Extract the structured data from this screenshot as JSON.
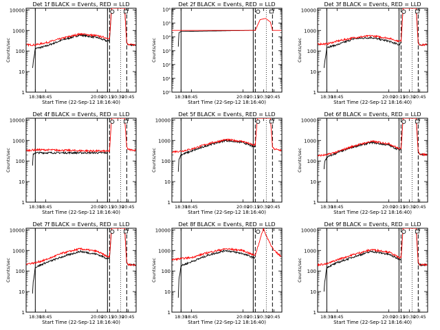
{
  "colors": {
    "events": "#000000",
    "lld": "#ff0000",
    "axes": "#000000",
    "background": "#ffffff"
  },
  "chart_data": [
    {
      "type": "line",
      "title": "Det 1f BLACK = Events, RED = LLD",
      "xlabel": "Start Time (22-Sep-12 18:16:40)",
      "ylabel": "Counts/sec",
      "xlim": [
        "18:16:40",
        "20:56:40"
      ],
      "ylim": [
        1,
        12000
      ],
      "log_y": true,
      "x_ticks": [
        "18:30",
        "18:45",
        "20:00",
        "20:15",
        "20:30",
        "20:45"
      ],
      "y_ticks": [
        "1",
        "10",
        "100",
        "1000",
        "10000"
      ],
      "solid_vlines": [
        "18:30",
        "20:15"
      ],
      "dashed_vlines": [
        "20:18",
        "20:43"
      ],
      "dotted_vlines": [
        "20:34"
      ],
      "markers": [
        {
          "label": "S",
          "time": "20:18"
        },
        {
          "label": "N",
          "time": "20:43"
        }
      ],
      "series": [
        {
          "name": "Events",
          "color": "#000000",
          "x": [
            "18:26",
            "18:27",
            "18:30",
            "18:45",
            "19:10",
            "19:35",
            "20:00",
            "20:15",
            "20:18",
            "20:21",
            "20:40",
            "20:43",
            "20:45",
            "20:56"
          ],
          "y": [
            15,
            28,
            130,
            170,
            350,
            600,
            450,
            300,
            320,
            12000,
            12000,
            260,
            200,
            200
          ]
        },
        {
          "name": "LLD",
          "color": "#ff0000",
          "x": [
            "18:16",
            "18:30",
            "18:45",
            "19:10",
            "19:35",
            "20:00",
            "20:15",
            "20:18",
            "20:21",
            "20:40",
            "20:43",
            "20:45",
            "20:56"
          ],
          "y": [
            200,
            200,
            250,
            420,
            680,
            550,
            420,
            420,
            12000,
            12000,
            260,
            200,
            200
          ]
        }
      ]
    },
    {
      "type": "line",
      "title": "Det 2f BLACK = Events, RED = LLD",
      "xlabel": "Start Time (22-Sep-12 18:16:40)",
      "ylabel": "Counts/sec",
      "xlim": [
        "18:16:40",
        "20:56:40"
      ],
      "ylim": [
        1,
        1200000
      ],
      "log_y": true,
      "x_ticks": [
        "18:30",
        "18:45",
        "20:00",
        "20:15",
        "20:30",
        "20:45"
      ],
      "y_ticks": [
        "10⁰",
        "10¹",
        "10²",
        "10³",
        "10⁴",
        "10⁵",
        "10⁶"
      ],
      "solid_vlines": [
        "18:30",
        "20:15"
      ],
      "dashed_vlines": [
        "20:18",
        "20:43"
      ],
      "dotted_vlines": [
        "20:34"
      ],
      "markers": [
        {
          "label": "S",
          "time": "20:18"
        },
        {
          "label": "N",
          "time": "20:43"
        }
      ],
      "series": [
        {
          "name": "Events",
          "color": "#000000",
          "x": [
            "18:26",
            "18:27",
            "18:30",
            "20:15",
            "20:18"
          ],
          "y": [
            2000,
            20000,
            25000,
            30000,
            30000
          ]
        },
        {
          "name": "LLD",
          "color": "#ff0000",
          "x": [
            "18:16",
            "18:30",
            "20:15",
            "20:18",
            "20:25",
            "20:33",
            "20:40",
            "20:43",
            "20:56"
          ],
          "y": [
            30000,
            30000,
            30000,
            30000,
            180000,
            220000,
            120000,
            30000,
            30000
          ]
        }
      ]
    },
    {
      "type": "line",
      "title": "Det 3f BLACK = Events, RED = LLD",
      "xlabel": "Start Time (22-Sep-12 18:16:40)",
      "ylabel": "Counts/sec",
      "xlim": [
        "18:16:40",
        "20:56:40"
      ],
      "ylim": [
        1,
        12000
      ],
      "log_y": true,
      "x_ticks": [
        "18:30",
        "18:45",
        "20:00",
        "20:15",
        "20:30",
        "20:45"
      ],
      "y_ticks": [
        "1",
        "10",
        "100",
        "1000",
        "10000"
      ],
      "solid_vlines": [
        "18:30",
        "20:15"
      ],
      "dashed_vlines": [
        "20:18",
        "20:43"
      ],
      "dotted_vlines": [
        "20:34"
      ],
      "markers": [
        {
          "label": "S",
          "time": "20:18"
        },
        {
          "label": "N",
          "time": "20:43"
        }
      ],
      "series": [
        {
          "name": "Events",
          "color": "#000000",
          "x": [
            "18:26",
            "18:27",
            "18:30",
            "18:45",
            "19:10",
            "19:35",
            "20:00",
            "20:15",
            "20:18",
            "20:21",
            "20:40",
            "20:43",
            "20:45",
            "20:56"
          ],
          "y": [
            15,
            28,
            150,
            200,
            400,
            450,
            300,
            200,
            250,
            12000,
            12000,
            260,
            200,
            200
          ]
        },
        {
          "name": "LLD",
          "color": "#ff0000",
          "x": [
            "18:16",
            "18:30",
            "18:45",
            "19:10",
            "19:35",
            "20:00",
            "20:15",
            "20:18",
            "20:21",
            "20:40",
            "20:43",
            "20:45",
            "20:56"
          ],
          "y": [
            220,
            220,
            300,
            450,
            550,
            420,
            300,
            300,
            12000,
            12000,
            260,
            200,
            200
          ]
        }
      ]
    },
    {
      "type": "line",
      "title": "Det 4f BLACK = Events, RED = LLD",
      "xlabel": "Start Time (22-Sep-12 18:16:40)",
      "ylabel": "Counts/sec",
      "xlim": [
        "18:16:40",
        "20:56:40"
      ],
      "ylim": [
        1,
        12000
      ],
      "log_y": true,
      "x_ticks": [
        "18:30",
        "18:45",
        "20:00",
        "20:15",
        "20:30",
        "20:45"
      ],
      "y_ticks": [
        "1",
        "10",
        "100",
        "1000",
        "10000"
      ],
      "solid_vlines": [
        "18:30",
        "20:15"
      ],
      "dashed_vlines": [
        "20:18",
        "20:43"
      ],
      "dotted_vlines": [
        "20:34"
      ],
      "markers": [
        {
          "label": "S",
          "time": "20:18"
        },
        {
          "label": "N",
          "time": "20:43"
        }
      ],
      "series": [
        {
          "name": "Events",
          "color": "#000000",
          "x": [
            "18:26",
            "18:27",
            "18:30",
            "20:15"
          ],
          "y": [
            60,
            220,
            250,
            250
          ]
        },
        {
          "name": "LLD",
          "color": "#ff0000",
          "x": [
            "18:16",
            "18:30",
            "18:45",
            "19:30",
            "20:15",
            "20:18",
            "20:21",
            "20:40",
            "20:43",
            "20:45",
            "20:56"
          ],
          "y": [
            320,
            350,
            350,
            320,
            300,
            300,
            12000,
            12000,
            500,
            360,
            330
          ]
        }
      ]
    },
    {
      "type": "line",
      "title": "Det 5f BLACK = Events, RED = LLD",
      "xlabel": "Start Time (22-Sep-12 18:16:40)",
      "ylabel": "Counts/sec",
      "xlim": [
        "18:16:40",
        "20:56:40"
      ],
      "ylim": [
        1,
        12000
      ],
      "log_y": true,
      "x_ticks": [
        "18:30",
        "18:45",
        "20:00",
        "20:15",
        "20:30",
        "20:45"
      ],
      "y_ticks": [
        "1",
        "10",
        "100",
        "1000",
        "10000"
      ],
      "solid_vlines": [
        "18:30",
        "20:15"
      ],
      "dashed_vlines": [
        "20:18",
        "20:43"
      ],
      "dotted_vlines": [
        "20:34"
      ],
      "markers": [
        {
          "label": "S",
          "time": "20:18"
        },
        {
          "label": "N",
          "time": "20:43"
        }
      ],
      "series": [
        {
          "name": "Events",
          "color": "#000000",
          "x": [
            "18:26",
            "18:27",
            "18:30",
            "18:45",
            "19:10",
            "19:35",
            "20:00",
            "20:15",
            "20:18"
          ],
          "y": [
            30,
            120,
            200,
            300,
            600,
            1000,
            800,
            500,
            500
          ]
        },
        {
          "name": "LLD",
          "color": "#ff0000",
          "x": [
            "18:16",
            "18:30",
            "18:45",
            "19:10",
            "19:35",
            "20:00",
            "20:15",
            "20:18",
            "20:21",
            "20:40",
            "20:43",
            "20:45",
            "20:56"
          ],
          "y": [
            280,
            300,
            380,
            700,
            1100,
            900,
            600,
            600,
            12000,
            12000,
            500,
            380,
            330
          ]
        }
      ]
    },
    {
      "type": "line",
      "title": "Det 6f BLACK = Events, RED = LLD",
      "xlabel": "Start Time (22-Sep-12 18:16:40)",
      "ylabel": "Counts/sec",
      "xlim": [
        "18:16:40",
        "20:56:40"
      ],
      "ylim": [
        1,
        12000
      ],
      "log_y": true,
      "x_ticks": [
        "18:30",
        "18:45",
        "20:00",
        "20:15",
        "20:30",
        "20:45"
      ],
      "y_ticks": [
        "1",
        "10",
        "100",
        "1000",
        "10000"
      ],
      "solid_vlines": [
        "18:30",
        "20:15"
      ],
      "dashed_vlines": [
        "20:18",
        "20:43"
      ],
      "dotted_vlines": [
        "20:34"
      ],
      "markers": [
        {
          "label": "S",
          "time": "20:18"
        },
        {
          "label": "N",
          "time": "20:43"
        }
      ],
      "series": [
        {
          "name": "Events",
          "color": "#000000",
          "x": [
            "18:26",
            "18:27",
            "18:30",
            "18:45",
            "19:10",
            "19:35",
            "20:00",
            "20:15",
            "20:18",
            "20:21",
            "20:40",
            "20:43",
            "20:45",
            "20:56"
          ],
          "y": [
            40,
            90,
            150,
            250,
            500,
            800,
            600,
            350,
            350,
            12000,
            12000,
            300,
            220,
            200
          ]
        },
        {
          "name": "LLD",
          "color": "#ff0000",
          "x": [
            "18:16",
            "18:30",
            "18:45",
            "19:10",
            "19:35",
            "20:00",
            "20:15",
            "20:18",
            "20:21",
            "20:40",
            "20:43",
            "20:45",
            "20:56"
          ],
          "y": [
            180,
            200,
            280,
            550,
            900,
            700,
            400,
            400,
            12000,
            12000,
            300,
            220,
            200
          ]
        }
      ]
    },
    {
      "type": "line",
      "title": "Det 7f BLACK = Events, RED = LLD",
      "xlabel": "Start Time (22-Sep-12 18:16:40)",
      "ylabel": "Counts/sec",
      "xlim": [
        "18:16:40",
        "20:56:40"
      ],
      "ylim": [
        1,
        12000
      ],
      "log_y": true,
      "x_ticks": [
        "18:30",
        "18:45",
        "20:00",
        "20:15",
        "20:30",
        "20:45"
      ],
      "y_ticks": [
        "1",
        "10",
        "100",
        "1000",
        "10000"
      ],
      "solid_vlines": [
        "18:30",
        "20:15"
      ],
      "dashed_vlines": [
        "20:18",
        "20:43"
      ],
      "dotted_vlines": [
        "20:34"
      ],
      "markers": [
        {
          "label": "S",
          "time": "20:18"
        },
        {
          "label": "N",
          "time": "20:43"
        }
      ],
      "series": [
        {
          "name": "Events",
          "color": "#000000",
          "x": [
            "18:26",
            "18:27",
            "18:30",
            "18:45",
            "19:10",
            "19:35",
            "20:00",
            "20:15",
            "20:18",
            "20:21",
            "20:40",
            "20:43",
            "20:45",
            "20:56"
          ],
          "y": [
            8,
            30,
            150,
            250,
            500,
            900,
            650,
            400,
            400,
            12000,
            12000,
            260,
            200,
            200
          ]
        },
        {
          "name": "LLD",
          "color": "#ff0000",
          "x": [
            "18:16",
            "18:30",
            "18:45",
            "19:10",
            "19:35",
            "20:00",
            "20:15",
            "20:18",
            "20:21",
            "20:40",
            "20:43",
            "20:45",
            "20:56"
          ],
          "y": [
            220,
            250,
            350,
            750,
            1200,
            900,
            500,
            500,
            12000,
            12000,
            260,
            200,
            200
          ]
        }
      ]
    },
    {
      "type": "line",
      "title": "Det 8f BLACK = Events, RED = LLD",
      "xlabel": "Start Time (22-Sep-12 18:16:40)",
      "ylabel": "Counts/sec",
      "xlim": [
        "18:16:40",
        "20:56:40"
      ],
      "ylim": [
        1,
        12000
      ],
      "log_y": true,
      "x_ticks": [
        "18:30",
        "18:45",
        "20:00",
        "20:15",
        "20:30",
        "20:45"
      ],
      "y_ticks": [
        "1",
        "10",
        "100",
        "1000",
        "10000"
      ],
      "solid_vlines": [
        "18:30",
        "20:15"
      ],
      "dashed_vlines": [
        "20:18",
        "20:43"
      ],
      "dotted_vlines": [
        "20:34"
      ],
      "markers": [
        {
          "label": "S",
          "time": "20:18"
        }
      ],
      "series": [
        {
          "name": "Events",
          "color": "#000000",
          "x": [
            "18:26",
            "18:27",
            "18:30",
            "18:45",
            "19:10",
            "19:35",
            "20:00",
            "20:15",
            "20:18"
          ],
          "y": [
            5,
            40,
            180,
            280,
            600,
            1000,
            700,
            450,
            450
          ]
        },
        {
          "name": "LLD",
          "color": "#ff0000",
          "x": [
            "18:16",
            "18:30",
            "18:45",
            "19:10",
            "19:35",
            "20:00",
            "20:15",
            "20:18",
            "20:30",
            "20:33",
            "20:45",
            "20:56"
          ],
          "y": [
            350,
            400,
            450,
            800,
            1200,
            1000,
            600,
            600,
            12000,
            6000,
            1000,
            500
          ]
        }
      ]
    },
    {
      "type": "line",
      "title": "Det 9f BLACK = Events, RED = LLD",
      "xlabel": "Start Time (22-Sep-12 18:16:40)",
      "ylabel": "Counts/sec",
      "xlim": [
        "18:16:40",
        "20:56:40"
      ],
      "ylim": [
        1,
        12000
      ],
      "log_y": true,
      "x_ticks": [
        "18:30",
        "18:45",
        "20:00",
        "20:15",
        "20:30",
        "20:45"
      ],
      "y_ticks": [
        "1",
        "10",
        "100",
        "1000",
        "10000"
      ],
      "solid_vlines": [
        "18:30",
        "20:15"
      ],
      "dashed_vlines": [
        "20:18",
        "20:43"
      ],
      "dotted_vlines": [
        "20:34"
      ],
      "markers": [
        {
          "label": "S",
          "time": "20:18"
        },
        {
          "label": "N",
          "time": "20:43"
        }
      ],
      "series": [
        {
          "name": "Events",
          "color": "#000000",
          "x": [
            "18:26",
            "18:27",
            "18:30",
            "18:45",
            "19:10",
            "19:35",
            "20:00",
            "20:15",
            "20:18",
            "20:21",
            "20:40",
            "20:43",
            "20:45",
            "20:56"
          ],
          "y": [
            10,
            30,
            150,
            250,
            500,
            900,
            650,
            380,
            380,
            12000,
            12000,
            260,
            200,
            200
          ]
        },
        {
          "name": "LLD",
          "color": "#ff0000",
          "x": [
            "18:16",
            "18:30",
            "18:45",
            "19:10",
            "19:35",
            "20:00",
            "20:15",
            "20:18",
            "20:21",
            "20:40",
            "20:43",
            "20:45",
            "20:56"
          ],
          "y": [
            200,
            220,
            350,
            650,
            1100,
            850,
            450,
            450,
            12000,
            12000,
            260,
            200,
            200
          ]
        }
      ]
    }
  ]
}
